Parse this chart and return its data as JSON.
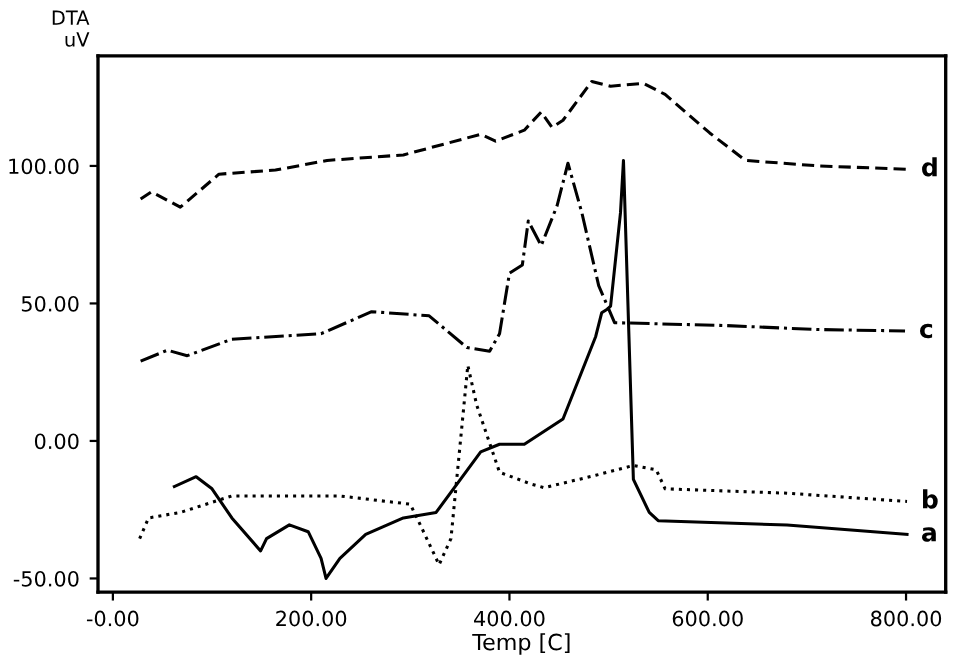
{
  "chart_data": {
    "type": "line",
    "xlabel": "Temp [C]",
    "ylabel": "DTA\nuV",
    "xlim": [
      -15,
      840
    ],
    "ylim": [
      -55,
      140
    ],
    "xticks": [
      {
        "value": 0,
        "label": "-0.00"
      },
      {
        "value": 200,
        "label": "200.00"
      },
      {
        "value": 400,
        "label": "400.00"
      },
      {
        "value": 600,
        "label": "600.00"
      },
      {
        "value": 800,
        "label": "800.00"
      }
    ],
    "yticks": [
      {
        "value": -50,
        "label": "-50.00"
      },
      {
        "value": 0,
        "label": "0.00"
      },
      {
        "value": 50,
        "label": "50.00"
      },
      {
        "value": 100,
        "label": "100.00"
      }
    ],
    "grid": false,
    "legend": false,
    "marker": "none",
    "series": [
      {
        "name": "a",
        "color": "#000000",
        "line_style": "solid",
        "x": [
          62,
          84,
          100,
          120,
          149,
          155,
          178,
          197,
          210,
          215,
          229,
          255,
          293,
          326,
          371,
          390,
          415,
          454,
          487,
          493,
          499,
          502,
          512,
          515,
          525,
          541,
          550,
          680,
          801
        ],
        "values": [
          -16.6,
          -13,
          -17.4,
          -28,
          -40,
          -35.5,
          -30.5,
          -33,
          -42.7,
          -50,
          -42.7,
          -34,
          -28,
          -26,
          -4,
          -1.2,
          -1.2,
          8,
          38,
          46.6,
          48,
          49,
          83,
          102,
          -14,
          -26,
          -29,
          -30.6,
          -34
        ]
      },
      {
        "name": "b",
        "color": "#000000",
        "line_style": "dotted",
        "x": [
          27,
          36,
          68,
          120,
          229,
          300,
          312,
          329,
          341,
          358,
          367,
          390,
          422,
          435,
          487,
          525,
          548,
          557,
          680,
          801
        ],
        "values": [
          -35.5,
          -28,
          -26,
          -20,
          -20,
          -23,
          -32,
          -45,
          -35.5,
          27.5,
          13,
          -11.4,
          -15.7,
          -17,
          -12.5,
          -8.9,
          -10.5,
          -17.4,
          -19,
          -22
        ]
      },
      {
        "name": "c",
        "color": "#000000",
        "line_style": "dashdot",
        "x": [
          28,
          55,
          75,
          120,
          210,
          261,
          319,
          357,
          380,
          390,
          400,
          413,
          419,
          432,
          448,
          459,
          473,
          490,
          506,
          615,
          712,
          799
        ],
        "values": [
          29,
          33,
          31,
          37,
          39,
          47,
          45.5,
          34,
          32.6,
          39,
          61,
          64,
          80,
          71,
          85.5,
          101,
          83,
          56.5,
          43,
          42,
          40.5,
          40
        ]
      },
      {
        "name": "d",
        "color": "#000000",
        "line_style": "dashed",
        "x": [
          28,
          39,
          68,
          107,
          164,
          216,
          293,
          371,
          386,
          415,
          432,
          443,
          454,
          483,
          502,
          535,
          557,
          602,
          638,
          712,
          801
        ],
        "values": [
          88,
          90.6,
          85,
          97,
          98.5,
          102,
          104,
          111.5,
          109,
          113,
          119.6,
          114,
          116.6,
          130.7,
          129,
          130,
          126,
          112,
          102,
          100,
          98.8
        ]
      }
    ]
  }
}
